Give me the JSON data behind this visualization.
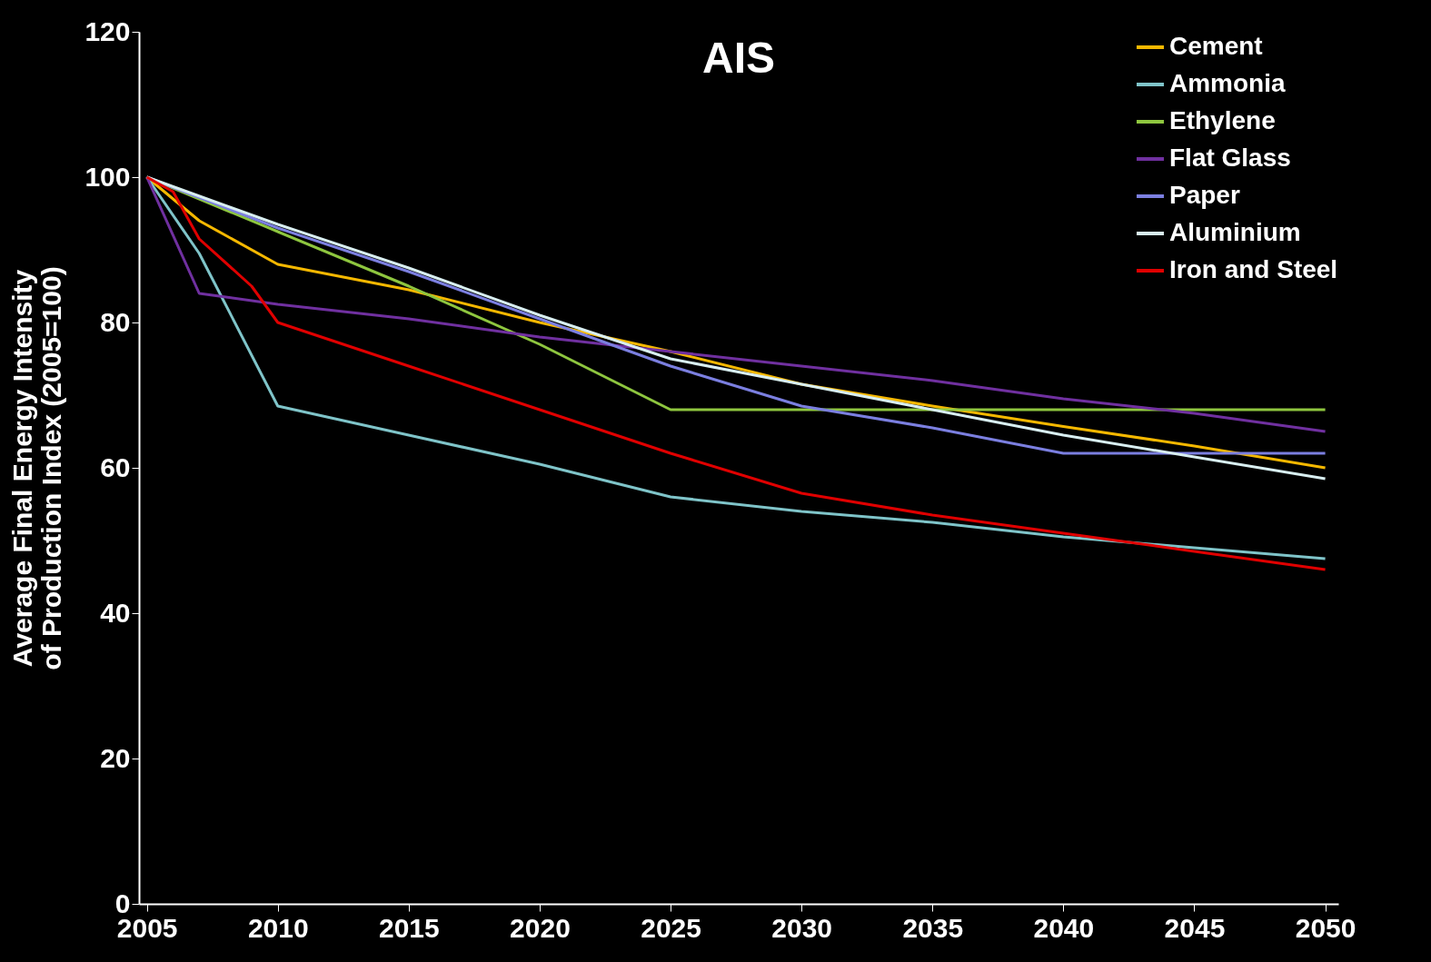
{
  "chart_data": {
    "type": "line",
    "title": "AIS",
    "ylabel": "Average Final Energy Intensity of Production Index (2005=100)",
    "xlim": [
      2004.7,
      2050.5
    ],
    "xticks": [
      2005,
      2010,
      2015,
      2020,
      2025,
      2030,
      2035,
      2040,
      2045,
      2050
    ],
    "ylim": [
      0,
      120
    ],
    "yticks": [
      0,
      20,
      40,
      60,
      80,
      100,
      120
    ],
    "grid": false,
    "legend": "top right",
    "marker": "none",
    "line_style": "solid",
    "series": [
      {
        "name": "Cement",
        "color": "#f5b800",
        "x": [
          2005,
          2007,
          2010,
          2015,
          2020,
          2025,
          2030,
          2035,
          2040,
          2045,
          2050
        ],
        "values": [
          100,
          94,
          88,
          84.5,
          80,
          76,
          71.5,
          68.5,
          65.7,
          63,
          60
        ]
      },
      {
        "name": "Ammonia",
        "color": "#7fc4c9",
        "x": [
          2005,
          2007,
          2010,
          2015,
          2020,
          2025,
          2030,
          2035,
          2040,
          2045,
          2050
        ],
        "values": [
          100,
          89.5,
          68.5,
          64.5,
          60.5,
          56,
          54,
          52.5,
          50.5,
          49,
          47.5
        ]
      },
      {
        "name": "Ethylene",
        "color": "#8ec63f",
        "x": [
          2005,
          2010,
          2015,
          2020,
          2025,
          2050
        ],
        "values": [
          100,
          92.5,
          85,
          77,
          68,
          68
        ]
      },
      {
        "name": "Flat Glass",
        "color": "#7030a0",
        "x": [
          2005,
          2007,
          2010,
          2015,
          2020,
          2025,
          2030,
          2035,
          2040,
          2045,
          2050
        ],
        "values": [
          100,
          84,
          82.5,
          80.5,
          78,
          76,
          74,
          72,
          69.5,
          67.5,
          65
        ]
      },
      {
        "name": "Paper",
        "color": "#7b7fe0",
        "x": [
          2005,
          2010,
          2015,
          2020,
          2025,
          2030,
          2035,
          2040,
          2045,
          2050
        ],
        "values": [
          100,
          93,
          87,
          80.5,
          74,
          68.5,
          65.5,
          62,
          62,
          62
        ]
      },
      {
        "name": "Aluminium",
        "color": "#d8eef0",
        "x": [
          2005,
          2010,
          2015,
          2020,
          2025,
          2030,
          2035,
          2040,
          2045,
          2050
        ],
        "values": [
          100,
          93.5,
          87.5,
          81,
          75,
          71.5,
          68,
          64.5,
          61.5,
          58.5
        ]
      },
      {
        "name": "Iron and Steel",
        "color": "#e00000",
        "x": [
          2005,
          2006,
          2007,
          2009,
          2010,
          2015,
          2020,
          2025,
          2030,
          2035,
          2040,
          2045,
          2050
        ],
        "values": [
          100,
          98,
          91.5,
          85,
          80,
          74,
          68,
          62,
          56.5,
          53.5,
          51,
          48.5,
          46
        ]
      }
    ]
  }
}
